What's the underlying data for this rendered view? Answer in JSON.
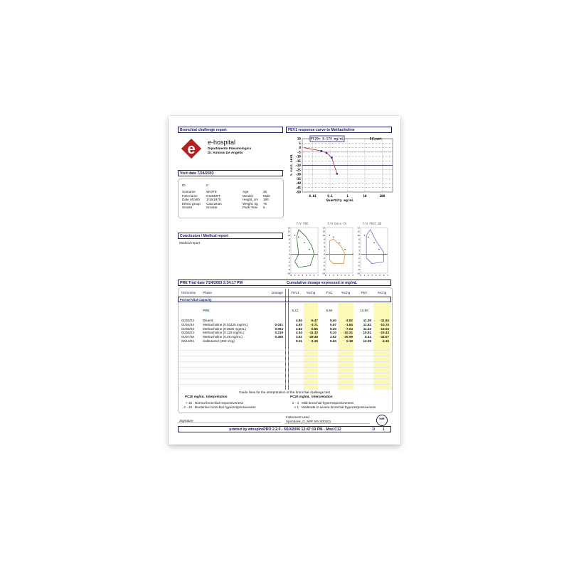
{
  "header": {
    "left_title": "Bronchial challenge report",
    "right_title": "FEV1 response curve to Methacholine"
  },
  "hospital": {
    "name": "e-hospital",
    "department": "Dipartimento Pneumologico",
    "doctor": "Dr. Antonio De Angelis",
    "logo_letter": "e"
  },
  "visit": {
    "title": "Visit date 7/24/2003"
  },
  "patient": {
    "id_label": "ID",
    "id": "0",
    "left": [
      {
        "label": "Surname",
        "value": "WHITE"
      },
      {
        "label": "First name",
        "value": "GILBERT"
      },
      {
        "label": "Date of birth",
        "value": "1/19/1970"
      },
      {
        "label": "Ethnic group",
        "value": "Caucasian"
      },
      {
        "label": "Smoke",
        "value": "Smoker"
      }
    ],
    "right": [
      {
        "label": "Age",
        "value": "36"
      },
      {
        "label": "Gender",
        "value": "Male"
      },
      {
        "label": "Height, cm",
        "value": "180"
      },
      {
        "label": "Weight, kg",
        "value": "76"
      },
      {
        "label": "Pack-Year",
        "value": "5"
      }
    ]
  },
  "chart_data": [
    {
      "type": "line",
      "title": "FEV1 response curve to Methacholine",
      "annotation": "PC20= 0.174  mg/mL",
      "legend": "Diluent",
      "legend_placement": "top-right",
      "xlabel": "Quantity mg/mL",
      "ylabel": "% Fall FEV1",
      "x_scale": "log",
      "x_ticks": [
        "0.01",
        "0.1",
        "1",
        "10",
        "100"
      ],
      "y_ticks": [
        10,
        5,
        0,
        -5,
        -10,
        -15,
        -20,
        -25,
        -30,
        -35,
        -40,
        -45,
        -50
      ],
      "ylim": [
        -50,
        10
      ],
      "grid": true,
      "points": [
        {
          "x": 0.003,
          "y": 0
        },
        {
          "x": 0.03125,
          "y": -3.71
        },
        {
          "x": 0.0625,
          "y": -5.86
        },
        {
          "x": 0.125,
          "y": -11.33
        },
        {
          "x": 0.25,
          "y": -29.49
        }
      ],
      "diluent_line": -5,
      "pc20_line": -20,
      "colors": {
        "curve": "#c0392b",
        "points": "#1a1f8c",
        "diluent": "#cc44cc",
        "pc20": "#1a1f5c",
        "grid": "#33cc33"
      }
    },
    {
      "type": "line",
      "title": "F/V PRE",
      "color": "#2a7a2a"
    },
    {
      "type": "line",
      "title": "F/V Dose Ch",
      "color": "#e08a30"
    },
    {
      "type": "line",
      "title": "F/V POST BD",
      "color": "#7a6ac0"
    }
  ],
  "small_axes": {
    "y_ticks": [
      "14",
      "12",
      "10",
      "8",
      "6",
      "4",
      "2",
      "0",
      "-2",
      "-4",
      "-6",
      "-8",
      "-10"
    ],
    "x_ticks": [
      "0",
      "1",
      "2",
      "3",
      "4",
      "5",
      "6",
      "7"
    ]
  },
  "conclusion": {
    "title": "Conclusion / Medical report",
    "text": "Medical report"
  },
  "trial": {
    "title": "PRE Trial date 7/24/2003   2:34:17 PM",
    "note": "Cumulative dosage expressed in mg/mL"
  },
  "table": {
    "headers": [
      "hh/mm/ss",
      "Phase",
      "Dosage",
      "FEV1",
      "%Chg",
      "FVC",
      "%Chg",
      "PEF",
      "%Chg"
    ],
    "section": "Forced Vital Capacity",
    "pre": {
      "label": "PRE",
      "fev1": "5.12",
      "fvc": "5.60",
      "pef": "12.90"
    },
    "rows": [
      [
        "01/53/23",
        "Diluent",
        "",
        "4.84",
        "-5.47",
        "5.40",
        "-3.52",
        "11.36",
        "-11.94"
      ],
      [
        "01/54/34",
        "Methacholine (0.03125 mg/mL)",
        "0.031",
        "4.93",
        "-3.71",
        "5.57",
        "-1.94",
        "11.52",
        "-10.70"
      ],
      [
        "01/55/03",
        "Methacholine (0.0625 mg/mL)",
        "0.094",
        "4.82",
        "-5.86",
        "5.20",
        "-7.04",
        "11.22",
        "-13.02"
      ],
      [
        "01/55/23",
        "Methacholine (0.125 mg/mL)",
        "0.219",
        "4.54",
        "-11.33",
        "5.10",
        "-10.21",
        "10.91",
        "-15.43"
      ],
      [
        "01/57/38",
        "Methacholine (0.25 mg/mL)",
        "0.469",
        "3.61",
        "-29.49",
        "3.92",
        "-30.99",
        "8.44",
        "-34.57"
      ],
      [
        "02/13/04",
        "Salbutamol (400 mcg)",
        "",
        "5.01",
        "-2.15",
        "5.63",
        "0.18",
        "12.36",
        "-4.19"
      ]
    ]
  },
  "guide": {
    "title": "Guide lines for the interpretation of the bronchial challenge test",
    "col_pc20": "PC20 mg/mL",
    "col_interp": "Interpretation",
    "left": [
      {
        "range": "> 16",
        "text": "Normal bronchial responsiveness"
      },
      {
        "range": "4 - 16",
        "text": "Borderline bronchial hyperresponsiveness"
      }
    ],
    "right": [
      {
        "range": "1 - 4",
        "text": "Mild bronchial hyperresponsiveness"
      },
      {
        "range": "< 1",
        "text": "Moderate to severe bronchial hyperresponsiveness"
      }
    ]
  },
  "signature": {
    "label": "Signature",
    "instrument_label": "Instrument used",
    "instrument": "Spirobank_G_MIR S/N 000201",
    "mir_logo": "MIR"
  },
  "footer": {
    "printed": "printed by winspiroPRO 2.2.0 - 5/10/2006 12:47:19 PM - Mod C12",
    "page": "1/",
    "pages": "1"
  }
}
